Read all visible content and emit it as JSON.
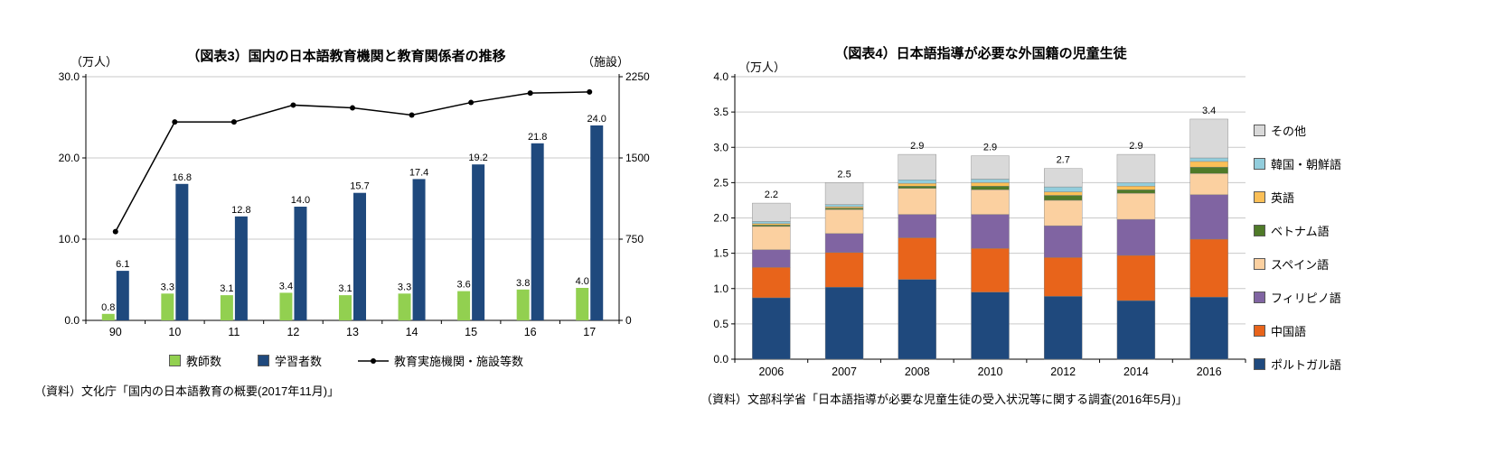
{
  "chart_data": [
    {
      "id": "figure3",
      "type": "combo-bar-line",
      "title": "（図表3）国内の日本語教育機関と教育関係者の推移",
      "left_axis": {
        "unit": "（万人）",
        "min": 0,
        "max": 30,
        "tick_values": [
          0,
          10,
          20,
          30
        ],
        "tick_labels": [
          "0.0",
          "10.0",
          "20.0",
          "30.0"
        ]
      },
      "right_axis": {
        "unit": "（施設）",
        "min": 0,
        "max": 2250,
        "tick_values": [
          0,
          750,
          1500,
          2250
        ],
        "tick_labels": [
          "0",
          "750",
          "1500",
          "2250"
        ]
      },
      "categories": [
        "90",
        "10",
        "11",
        "12",
        "13",
        "14",
        "15",
        "16",
        "17"
      ],
      "series": [
        {
          "key": "teachers",
          "name": "教師数",
          "type": "bar",
          "axis": "left",
          "color": "#92D050",
          "values": [
            0.8,
            3.3,
            3.1,
            3.4,
            3.1,
            3.3,
            3.6,
            3.8,
            4.0
          ],
          "labels": [
            "0.8",
            "3.3",
            "3.1",
            "3.4",
            "3.1",
            "3.3",
            "3.6",
            "3.8",
            "4.0"
          ]
        },
        {
          "key": "learners",
          "name": "学習者数",
          "type": "bar",
          "axis": "left",
          "color": "#1F497D",
          "values": [
            6.1,
            16.8,
            12.8,
            14.0,
            15.7,
            17.4,
            19.2,
            21.8,
            24.0
          ],
          "labels": [
            "6.1",
            "16.8",
            "12.8",
            "14.0",
            "15.7",
            "17.4",
            "19.2",
            "21.8",
            "24.0"
          ]
        },
        {
          "key": "institutions",
          "name": "教育実施機関・施設等数",
          "type": "line",
          "axis": "right",
          "color": "#000000",
          "values": [
            820,
            1832,
            1832,
            1988,
            1962,
            1896,
            2012,
            2099,
            2109
          ]
        }
      ],
      "legend_position": "bottom",
      "grid": true,
      "source": "（資料）文化庁「国内の日本語教育の概要(2017年11月)」"
    },
    {
      "id": "figure4",
      "type": "stacked-bar",
      "title": "（図表4）日本語指導が必要な外国籍の児童生徒",
      "y_axis": {
        "unit": "（万人）",
        "min": 0,
        "max": 4.0,
        "tick_values": [
          0,
          0.5,
          1.0,
          1.5,
          2.0,
          2.5,
          3.0,
          3.5,
          4.0
        ],
        "tick_labels": [
          "0.0",
          "0.5",
          "1.0",
          "1.5",
          "2.0",
          "2.5",
          "3.0",
          "3.5",
          "4.0"
        ]
      },
      "categories": [
        "2006",
        "2007",
        "2008",
        "2010",
        "2012",
        "2014",
        "2016"
      ],
      "totals": [
        "2.2",
        "2.5",
        "2.9",
        "2.9",
        "2.7",
        "2.9",
        "3.4"
      ],
      "series": [
        {
          "key": "portuguese",
          "name": "ポルトガル語",
          "color": "#1F497D",
          "values": [
            0.87,
            1.02,
            1.13,
            0.95,
            0.89,
            0.83,
            0.88
          ]
        },
        {
          "key": "chinese",
          "name": "中国語",
          "color": "#E8641B",
          "values": [
            0.43,
            0.49,
            0.59,
            0.62,
            0.55,
            0.64,
            0.82
          ]
        },
        {
          "key": "filipino",
          "name": "フィリピノ語",
          "color": "#8064A2",
          "values": [
            0.25,
            0.27,
            0.33,
            0.48,
            0.45,
            0.51,
            0.63
          ]
        },
        {
          "key": "spanish",
          "name": "スペイン語",
          "color": "#FBD0A0",
          "values": [
            0.33,
            0.34,
            0.37,
            0.35,
            0.36,
            0.37,
            0.3
          ]
        },
        {
          "key": "vietnamese",
          "name": "ベトナム語",
          "color": "#4F7A28",
          "values": [
            0.02,
            0.02,
            0.03,
            0.05,
            0.07,
            0.05,
            0.09
          ]
        },
        {
          "key": "english",
          "name": "英語",
          "color": "#FBBF57",
          "values": [
            0.02,
            0.02,
            0.04,
            0.05,
            0.05,
            0.05,
            0.08
          ]
        },
        {
          "key": "korean",
          "name": "韓国・朝鮮語",
          "color": "#92CDDC",
          "values": [
            0.03,
            0.03,
            0.05,
            0.05,
            0.07,
            0.05,
            0.05
          ]
        },
        {
          "key": "other",
          "name": "その他",
          "color": "#D9D9D9",
          "values": [
            0.26,
            0.31,
            0.36,
            0.33,
            0.26,
            0.4,
            0.55
          ]
        }
      ],
      "legend_order_top_to_bottom": [
        "その他",
        "韓国・朝鮮語",
        "英語",
        "ベトナム語",
        "スペイン語",
        "フィリピノ語",
        "中国語",
        "ポルトガル語"
      ],
      "legend_position": "right",
      "grid": true,
      "source": "（資料）文部科学省「日本語指導が必要な児童生徒の受入状況等に関する調査(2016年5月)」"
    }
  ]
}
